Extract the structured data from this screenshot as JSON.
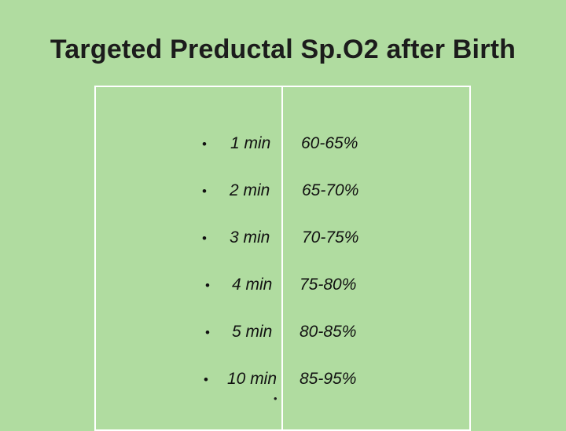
{
  "title": "Targeted Preductal Sp.O2 after Birth",
  "bullet_glyph": "•",
  "rows": [
    {
      "time": "1 min",
      "range": "60-65%"
    },
    {
      "time": "2 min",
      "range": "65-70%"
    },
    {
      "time": "3 min",
      "range": "70-75%"
    },
    {
      "time": "4 min",
      "range": "75-80%"
    },
    {
      "time": "5 min",
      "range": "80-85%"
    },
    {
      "time": "10 min",
      "range": "85-95%"
    }
  ],
  "trailing_bullet": "•",
  "colors": {
    "background": "#b0dca0",
    "border": "#ffffff",
    "text": "#111111"
  }
}
